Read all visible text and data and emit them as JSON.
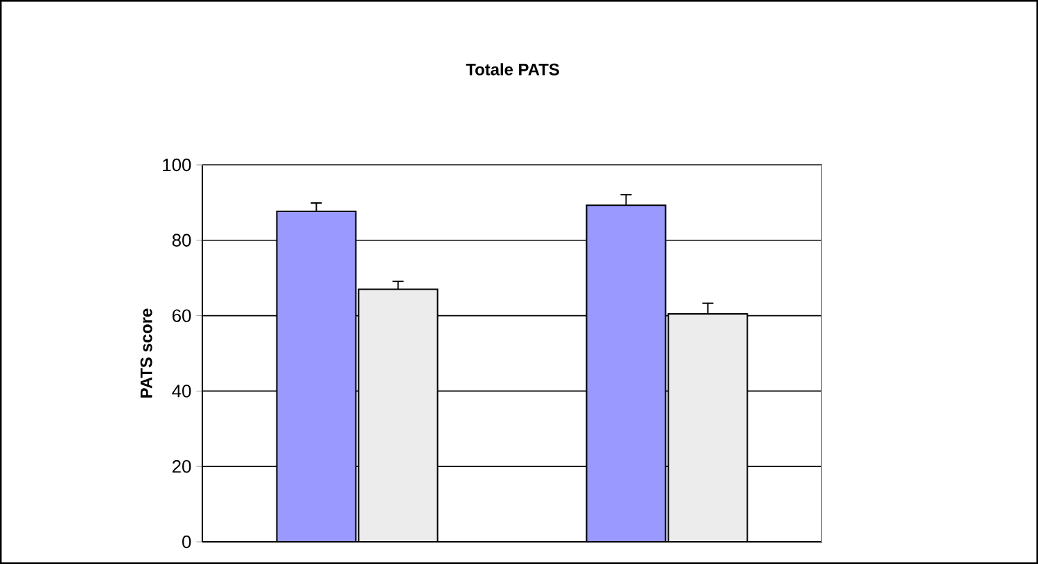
{
  "chart_data": {
    "type": "bar",
    "title": "Totale PATS",
    "ylabel": "PATS score",
    "categories": [
      null,
      null
    ],
    "series": [
      {
        "color": "#9999ff",
        "values": [
          87.7,
          89.3
        ],
        "errors": [
          2.2,
          2.8
        ]
      },
      {
        "color": "#ececec",
        "values": [
          67.0,
          60.5
        ],
        "errors": [
          2.1,
          2.8
        ]
      }
    ],
    "ylim": [
      0,
      100
    ],
    "yticks": [
      0,
      20,
      40,
      60,
      80,
      100
    ],
    "grid": "y"
  }
}
